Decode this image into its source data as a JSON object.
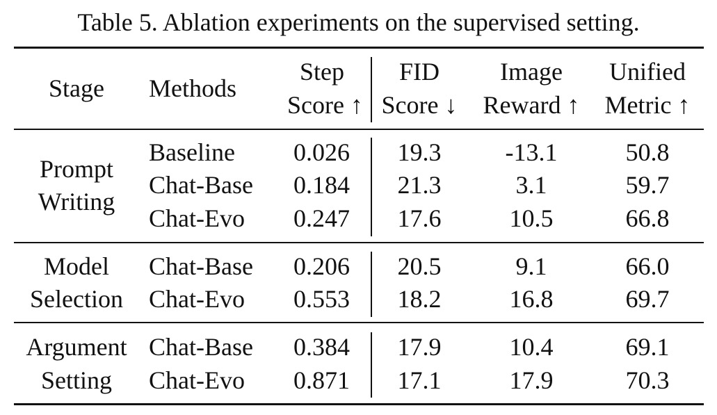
{
  "caption": "Table 5. Ablation experiments on the supervised setting.",
  "header": {
    "stage": "Stage",
    "methods": "Methods",
    "step": [
      "Step",
      "Score ↑"
    ],
    "fid": [
      "FID",
      "Score ↓"
    ],
    "image": [
      "Image",
      "Reward ↑"
    ],
    "unified": [
      "Unified",
      "Metric ↑"
    ]
  },
  "groups": [
    {
      "stage": [
        "Prompt",
        "Writing"
      ],
      "rows": [
        {
          "method": "Baseline",
          "step": "0.026",
          "fid": "19.3",
          "reward": "-13.1",
          "unified": "50.8"
        },
        {
          "method": "Chat-Base",
          "step": "0.184",
          "fid": "21.3",
          "reward": "3.1",
          "unified": "59.7"
        },
        {
          "method": "Chat-Evo",
          "step": "0.247",
          "fid": "17.6",
          "reward": "10.5",
          "unified": "66.8"
        }
      ]
    },
    {
      "stage": [
        "Model",
        "Selection"
      ],
      "rows": [
        {
          "method": "Chat-Base",
          "step": "0.206",
          "fid": "20.5",
          "reward": "9.1",
          "unified": "66.0"
        },
        {
          "method": "Chat-Evo",
          "step": "0.553",
          "fid": "18.2",
          "reward": "16.8",
          "unified": "69.7"
        }
      ]
    },
    {
      "stage": [
        "Argument",
        "Setting"
      ],
      "rows": [
        {
          "method": "Chat-Base",
          "step": "0.384",
          "fid": "17.9",
          "reward": "10.4",
          "unified": "69.1"
        },
        {
          "method": "Chat-Evo",
          "step": "0.871",
          "fid": "17.1",
          "reward": "17.9",
          "unified": "70.3"
        }
      ]
    }
  ]
}
